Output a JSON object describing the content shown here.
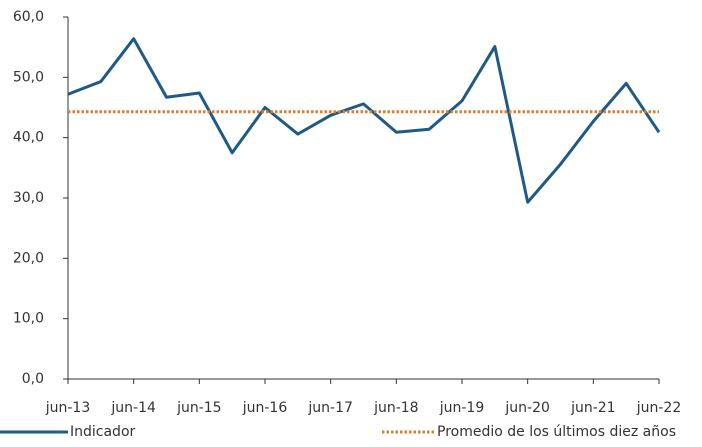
{
  "chart_data": {
    "type": "line",
    "categories": [
      "jun-13",
      null,
      "jun-14",
      null,
      "jun-15",
      null,
      "jun-16",
      null,
      "jun-17",
      null,
      "jun-18",
      null,
      "jun-19",
      null,
      "jun-20",
      null,
      "jun-21",
      null,
      "jun-22"
    ],
    "series": [
      {
        "name": "Indicador",
        "color": "#1f5a87",
        "values": [
          47.2,
          49.3,
          56.4,
          46.7,
          47.4,
          37.5,
          45.0,
          40.6,
          43.7,
          45.6,
          40.9,
          41.4,
          46.1,
          55.1,
          29.3,
          35.6,
          42.7,
          49.0,
          40.9
        ]
      },
      {
        "name": "Promedio de los últimos diez años",
        "color": "#e07b2a",
        "value": 44.3
      }
    ],
    "ylim": [
      0,
      60
    ],
    "yticks": [
      {
        "value": 0,
        "label": "0,0"
      },
      {
        "value": 10,
        "label": "10,0"
      },
      {
        "value": 20,
        "label": "20,0"
      },
      {
        "value": 30,
        "label": "30,0"
      },
      {
        "value": 40,
        "label": "40,0"
      },
      {
        "value": 50,
        "label": "50,0"
      },
      {
        "value": 60,
        "label": "60,0"
      }
    ],
    "grid": false
  }
}
